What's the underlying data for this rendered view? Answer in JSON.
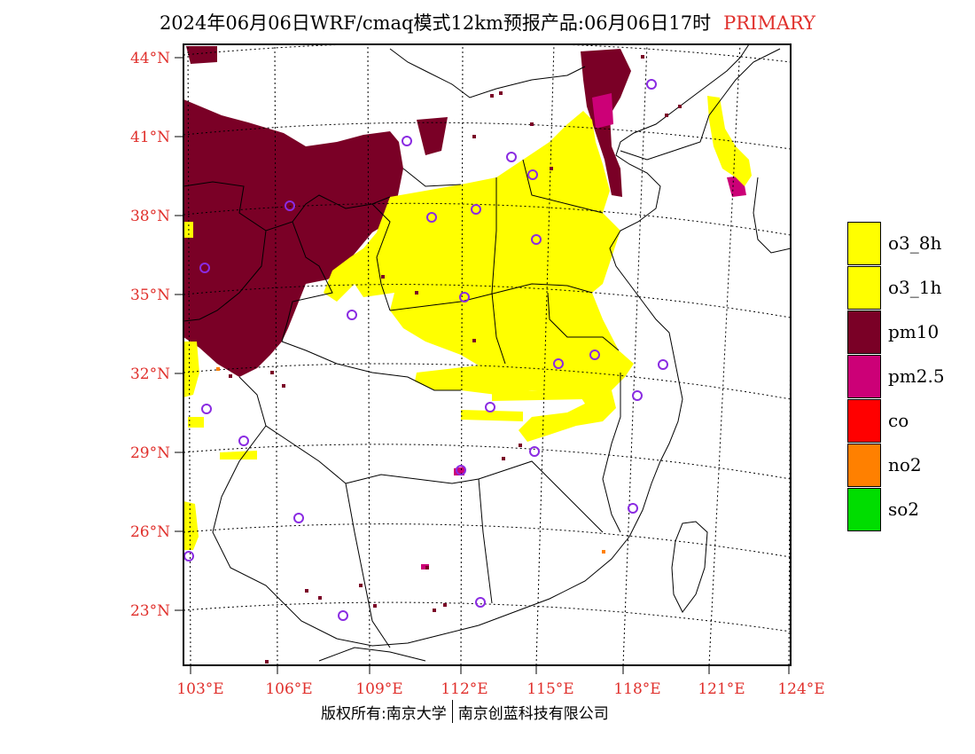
{
  "header": {
    "title": "2024年06月06日WRF/cmaq模式12km预报产品:06月06日17时",
    "mode": "PRIMARY"
  },
  "axes": {
    "lat_labels": [
      "44°N",
      "41°N",
      "38°N",
      "35°N",
      "32°N",
      "29°N",
      "26°N",
      "23°N"
    ],
    "lon_labels": [
      "103°E",
      "106°E",
      "109°E",
      "112°E",
      "115°E",
      "118°E",
      "121°E",
      "124°E"
    ]
  },
  "legend": {
    "items": [
      {
        "label": "o3_8h",
        "color": "#ffff00"
      },
      {
        "label": "o3_1h",
        "color": "#ffff00"
      },
      {
        "label": "pm10",
        "color": "#7a0026"
      },
      {
        "label": "pm2.5",
        "color": "#cc0077"
      },
      {
        "label": "co",
        "color": "#ff0000"
      },
      {
        "label": "no2",
        "color": "#ff8000"
      },
      {
        "label": "so2",
        "color": "#00dd00"
      }
    ]
  },
  "footer": {
    "copyright": "版权所有:南京大学",
    "company": "南京创蓝科技有限公司"
  },
  "colors": {
    "o3": "#ffff00",
    "pm10": "#7a0026",
    "pm25": "#cc0077",
    "no2": "#ff8000",
    "station": "#8a2be2",
    "tick_label": "#e0302c"
  }
}
